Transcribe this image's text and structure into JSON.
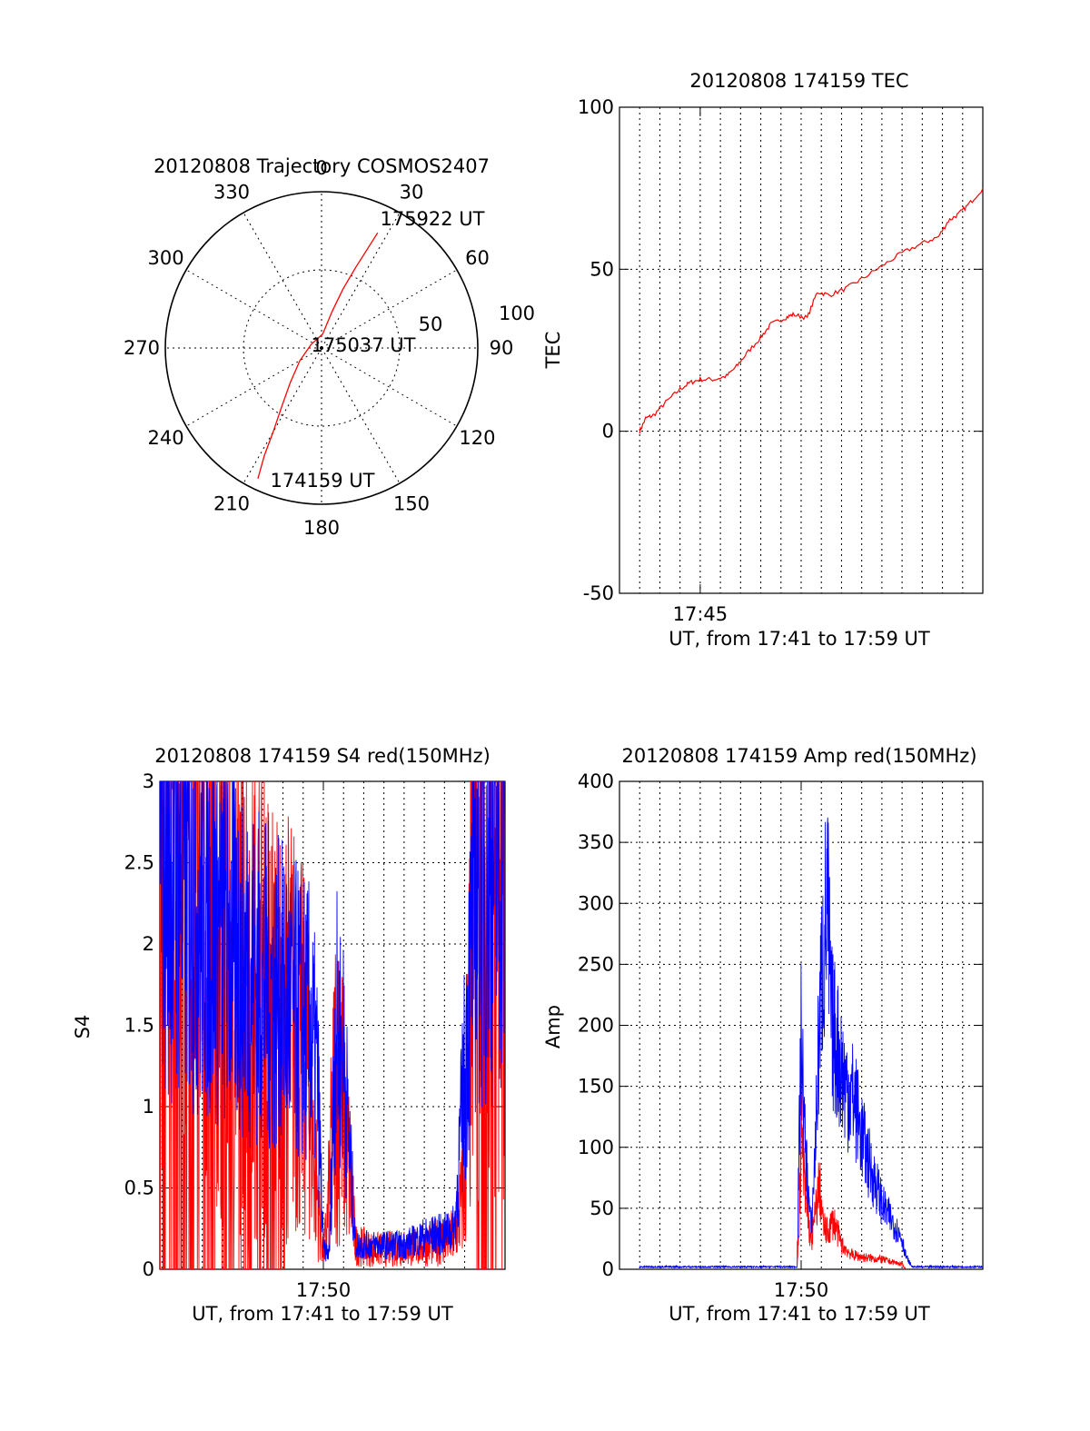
{
  "chart_data": [
    {
      "id": "trajectory",
      "type": "polar",
      "title": "20120808 Trajectory COSMOS2407",
      "azimuth_labels": [
        "0",
        "30",
        "60",
        "90",
        "120",
        "150",
        "180",
        "210",
        "240",
        "270",
        "300",
        "330"
      ],
      "radius_labels": [
        "50",
        "100"
      ],
      "rlim": [
        0,
        100
      ],
      "grid": true,
      "series": [
        {
          "color": "#ff0000",
          "points": [
            {
              "az": 206,
              "zen": 93
            },
            {
              "az": 208,
              "zen": 78
            },
            {
              "az": 210,
              "zen": 62
            },
            {
              "az": 214,
              "zen": 46
            },
            {
              "az": 222,
              "zen": 30
            },
            {
              "az": 240,
              "zen": 16
            },
            {
              "az": 290,
              "zen": 7
            },
            {
              "az": 5,
              "zen": 9
            },
            {
              "az": 16,
              "zen": 24
            },
            {
              "az": 20,
              "zen": 40
            },
            {
              "az": 23,
              "zen": 56
            },
            {
              "az": 25,
              "zen": 71
            },
            {
              "az": 26,
              "zen": 82
            }
          ]
        }
      ],
      "annotations": [
        "175922 UT",
        "175037 UT",
        "174159 UT"
      ]
    },
    {
      "id": "tec",
      "type": "line",
      "title": "20120808 174159 TEC",
      "ylabel": "TEC",
      "xlabel": "UT, from 17:41 to 17:59 UT",
      "xlim": [
        41.0,
        59.0
      ],
      "ylim": [
        -50,
        100
      ],
      "yticks": [
        -50,
        0,
        50,
        100
      ],
      "xticks": [
        {
          "value": 45.0,
          "label": "17:45"
        }
      ],
      "grid": true,
      "series": [
        {
          "color": "#ff0000",
          "x": [
            42.0,
            42.3,
            42.7,
            43.3,
            44.0,
            44.5,
            45.0,
            45.7,
            46.3,
            46.8,
            47.3,
            48.0,
            48.5,
            49.2,
            49.6,
            50.3,
            50.8,
            51.4,
            52.2,
            53.0,
            54.0,
            55.0,
            56.0,
            56.8,
            57.3,
            57.8,
            58.3,
            59.0
          ],
          "y": [
            0,
            4,
            5,
            9,
            13,
            15,
            16,
            16,
            17,
            20,
            24,
            29,
            33,
            35,
            36,
            35,
            43,
            42,
            44,
            47,
            51,
            55,
            58,
            60,
            65,
            67,
            70,
            75
          ]
        }
      ]
    },
    {
      "id": "s4",
      "type": "line",
      "title": "20120808 174159 S4 red(150MHz)",
      "ylabel": "S4",
      "xlabel": "UT, from 17:41 to 17:59 UT",
      "xlim": [
        41.9,
        59.0
      ],
      "ylim": [
        0,
        3
      ],
      "yticks": [
        0,
        0.5,
        1,
        1.5,
        2,
        2.5,
        3
      ],
      "ytick_labels": [
        "0",
        "0.5",
        "1",
        "1.5",
        "2",
        "2.5",
        "3"
      ],
      "xticks": [
        {
          "value": 50.0,
          "label": "17:50"
        }
      ],
      "grid": true,
      "series": [
        {
          "color": "#ff0000",
          "profile": [
            [
              41.9,
              3.0
            ],
            [
              44.0,
              2.2
            ],
            [
              46.0,
              1.9
            ],
            [
              47.5,
              1.6
            ],
            [
              48.5,
              1.5
            ],
            [
              49.3,
              1.2
            ],
            [
              49.6,
              0.6
            ],
            [
              50.0,
              0.1
            ],
            [
              50.2,
              0.3
            ],
            [
              50.6,
              1.2
            ],
            [
              51.0,
              1.0
            ],
            [
              51.6,
              0.15
            ],
            [
              52.5,
              0.12
            ],
            [
              54.0,
              0.13
            ],
            [
              55.0,
              0.15
            ],
            [
              56.0,
              0.18
            ],
            [
              56.5,
              0.2
            ],
            [
              57.0,
              0.5
            ],
            [
              57.5,
              2.5
            ],
            [
              59.0,
              2.8
            ]
          ],
          "noise": 0.9
        },
        {
          "color": "#0000ff",
          "profile": [
            [
              41.9,
              2.6
            ],
            [
              44.0,
              2.2
            ],
            [
              46.0,
              1.9
            ],
            [
              47.5,
              1.7
            ],
            [
              48.5,
              1.6
            ],
            [
              49.3,
              1.5
            ],
            [
              49.7,
              1.2
            ],
            [
              50.0,
              0.12
            ],
            [
              50.3,
              0.1
            ],
            [
              50.6,
              1.5
            ],
            [
              51.0,
              1.3
            ],
            [
              51.6,
              0.15
            ],
            [
              52.5,
              0.15
            ],
            [
              54.0,
              0.15
            ],
            [
              55.0,
              0.2
            ],
            [
              56.0,
              0.22
            ],
            [
              56.5,
              0.25
            ],
            [
              57.0,
              1.2
            ],
            [
              57.5,
              2.3
            ],
            [
              59.0,
              2.6
            ]
          ],
          "noise": 0.6
        }
      ]
    },
    {
      "id": "amp",
      "type": "line",
      "title": "20120808 174159 Amp red(150MHz)",
      "ylabel": "Amp",
      "xlabel": "UT, from 17:41 to 17:59 UT",
      "xlim": [
        41.0,
        59.0
      ],
      "ylim": [
        0,
        400
      ],
      "yticks": [
        0,
        50,
        100,
        150,
        200,
        250,
        300,
        350,
        400
      ],
      "xticks": [
        {
          "value": 50.0,
          "label": "17:50"
        }
      ],
      "grid": true,
      "series": [
        {
          "color": "#0000ff",
          "profile": [
            [
              42.0,
              2
            ],
            [
              49.8,
              2
            ],
            [
              49.9,
              100
            ],
            [
              50.0,
              190
            ],
            [
              50.2,
              100
            ],
            [
              50.5,
              30
            ],
            [
              50.7,
              100
            ],
            [
              50.9,
              200
            ],
            [
              51.1,
              260
            ],
            [
              51.3,
              300
            ],
            [
              51.5,
              200
            ],
            [
              51.8,
              180
            ],
            [
              52.2,
              150
            ],
            [
              52.6,
              140
            ],
            [
              53.0,
              110
            ],
            [
              53.3,
              90
            ],
            [
              53.7,
              70
            ],
            [
              54.1,
              50
            ],
            [
              54.5,
              40
            ],
            [
              55.0,
              25
            ],
            [
              55.2,
              10
            ],
            [
              55.5,
              2
            ],
            [
              59.0,
              2
            ]
          ],
          "noise": 0.35
        },
        {
          "color": "#ff0000",
          "profile": [
            [
              49.8,
              2
            ],
            [
              49.9,
              40
            ],
            [
              50.0,
              110
            ],
            [
              50.2,
              60
            ],
            [
              50.5,
              20
            ],
            [
              50.9,
              70
            ],
            [
              51.1,
              35
            ],
            [
              51.3,
              30
            ],
            [
              51.6,
              40
            ],
            [
              52.0,
              20
            ],
            [
              52.5,
              12
            ],
            [
              53.0,
              10
            ],
            [
              54.0,
              8
            ],
            [
              55.0,
              4
            ],
            [
              55.2,
              0
            ]
          ],
          "noise": 0.4
        }
      ]
    }
  ]
}
